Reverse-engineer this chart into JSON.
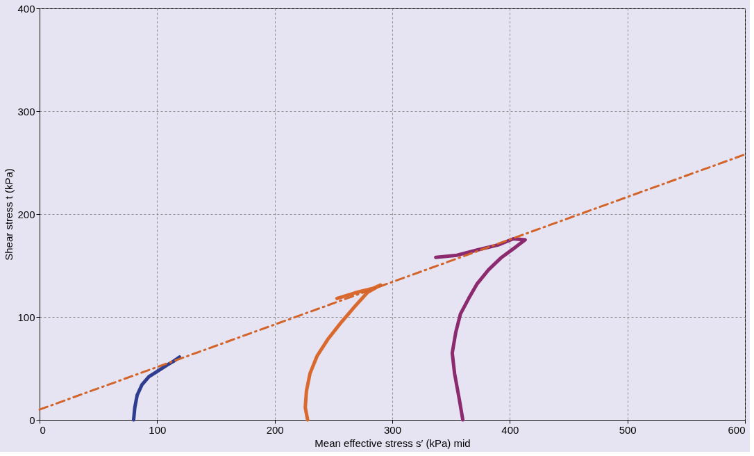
{
  "chart_data": {
    "type": "line",
    "xlabel": "Mean effective stress s′ (kPa) mid",
    "ylabel": "Shear stress t (kPa)",
    "xlim": [
      0,
      600
    ],
    "xticks": [
      0,
      100,
      200,
      300,
      400,
      500,
      600
    ],
    "ylim": [
      0,
      400
    ],
    "yticks": [
      0,
      100,
      200,
      300,
      400
    ],
    "grid": true,
    "marker": "none",
    "series": [
      {
        "color": "#2e3d8f",
        "line_style": "solid",
        "x": [
          80,
          81,
          83,
          87,
          93,
          100,
          108,
          114,
          119
        ],
        "values": [
          0,
          12,
          24,
          34,
          42,
          47,
          53,
          57,
          61
        ]
      },
      {
        "color": "#d9692e",
        "line_style": "solid",
        "x": [
          228,
          226,
          227,
          230,
          236,
          245,
          256,
          268,
          279,
          290,
          284,
          270,
          253
        ],
        "values": [
          0,
          12,
          28,
          45,
          62,
          78,
          94,
          110,
          124,
          131,
          128,
          124,
          118
        ]
      },
      {
        "color": "#8b2a6e",
        "line_style": "solid",
        "x": [
          360,
          357,
          353,
          351,
          354,
          358,
          365,
          372,
          382,
          393,
          405,
          413,
          403,
          390,
          372,
          355,
          337
        ],
        "values": [
          0,
          20,
          45,
          65,
          85,
          103,
          118,
          132,
          146,
          158,
          168,
          175,
          176,
          170,
          165,
          160,
          158
        ]
      },
      {
        "color": "#d2642a",
        "line_style": "dashdot",
        "x": [
          0,
          600
        ],
        "values": [
          10,
          258
        ]
      }
    ]
  }
}
